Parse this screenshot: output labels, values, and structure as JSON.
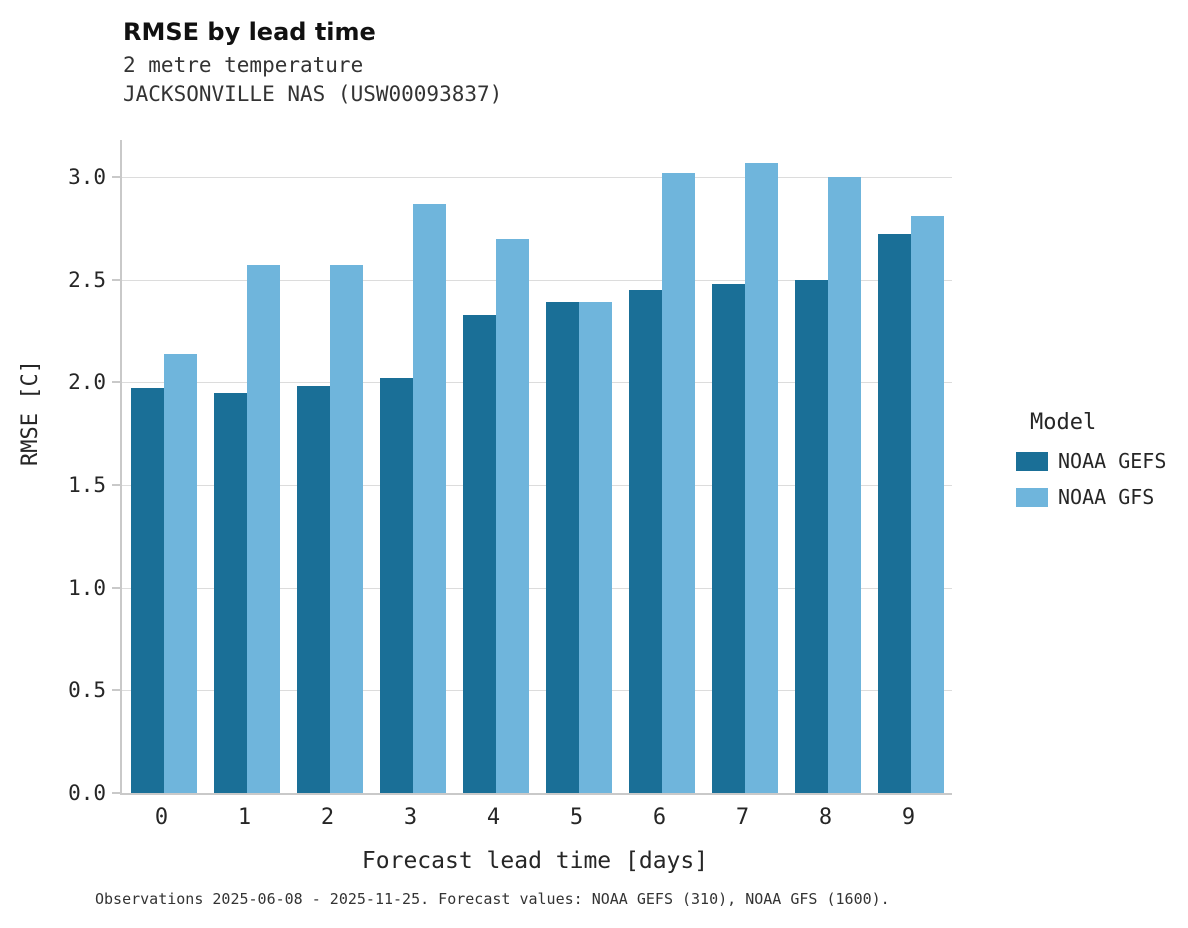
{
  "title": "RMSE by lead time",
  "subtitle_line1": "2 metre temperature",
  "subtitle_line2": "JACKSONVILLE NAS (USW00093837)",
  "caption": "Observations 2025-06-08 - 2025-11-25. Forecast values: NOAA GEFS (310), NOAA GFS (1600).",
  "legend": {
    "title": "Model",
    "entries": [
      {
        "label": "NOAA GEFS",
        "color": "#1a6f97"
      },
      {
        "label": "NOAA GFS",
        "color": "#6fb5dc"
      }
    ]
  },
  "colors": {
    "gefs_dark_blue": "#1a6f97",
    "gfs_light_blue": "#6fb5dc",
    "gridline": "#dcdcdc",
    "spine": "#c9c9c9"
  },
  "chart_data": {
    "type": "bar",
    "title": "RMSE by lead time",
    "xlabel": "Forecast lead time [days]",
    "ylabel": "RMSE [C]",
    "categories": [
      "0",
      "1",
      "2",
      "3",
      "4",
      "5",
      "6",
      "7",
      "8",
      "9"
    ],
    "series": [
      {
        "name": "NOAA GEFS",
        "color": "#1a6f97",
        "values": [
          1.97,
          1.95,
          1.98,
          2.02,
          2.33,
          2.39,
          2.45,
          2.48,
          2.5,
          2.72
        ]
      },
      {
        "name": "NOAA GFS",
        "color": "#6fb5dc",
        "values": [
          2.14,
          2.57,
          2.57,
          2.87,
          2.7,
          2.39,
          3.02,
          3.07,
          3.0,
          2.81
        ]
      }
    ],
    "ylim": [
      0,
      3.18
    ],
    "yticks": [
      0.0,
      0.5,
      1.0,
      1.5,
      2.0,
      2.5,
      3.0
    ],
    "grid": true,
    "legend_position": "right"
  }
}
